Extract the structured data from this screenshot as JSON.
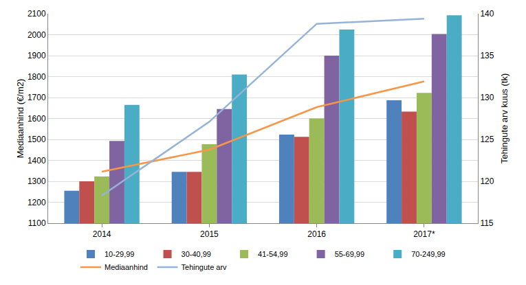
{
  "chart_data": {
    "type": "bar",
    "y_label": "Mediaanhind (€/m2)",
    "y2_label": "Tehingute arv kuus (tk)",
    "categories": [
      "2014",
      "2015",
      "2016",
      "2017*"
    ],
    "series": [
      {
        "name": "10-29,99",
        "color": "#4F81BD",
        "values": [
          1255,
          1345,
          1523,
          1687
        ]
      },
      {
        "name": "30-40,99",
        "color": "#C0504D",
        "values": [
          1300,
          1345,
          1512,
          1633
        ]
      },
      {
        "name": "41-54,99",
        "color": "#9BBB59",
        "values": [
          1323,
          1477,
          1600,
          1722
        ]
      },
      {
        "name": "55-69,99",
        "color": "#8064A2",
        "values": [
          1493,
          1645,
          1900,
          2003
        ]
      },
      {
        "name": "70-249,99",
        "color": "#4BACC6",
        "values": [
          1665,
          1810,
          2025,
          2093
        ]
      },
      {
        "name": "Mediaanhind",
        "color": "#F79646",
        "type": "line",
        "values": [
          1346,
          1451,
          1654,
          1777
        ]
      },
      {
        "name": "Tehingute arv",
        "color": "#95B3D7",
        "type": "line",
        "axis": "y2",
        "values": [
          118.3,
          127.1,
          138.8,
          139.4
        ]
      }
    ],
    "ylim": [
      1100,
      2100
    ],
    "yticks": [
      1100,
      1200,
      1300,
      1400,
      1500,
      1600,
      1700,
      1800,
      1900,
      2000,
      2100
    ],
    "y2lim": [
      115,
      140
    ],
    "y2ticks": [
      115,
      120,
      125,
      130,
      135,
      140
    ],
    "grid": true,
    "legend": "bottom"
  }
}
